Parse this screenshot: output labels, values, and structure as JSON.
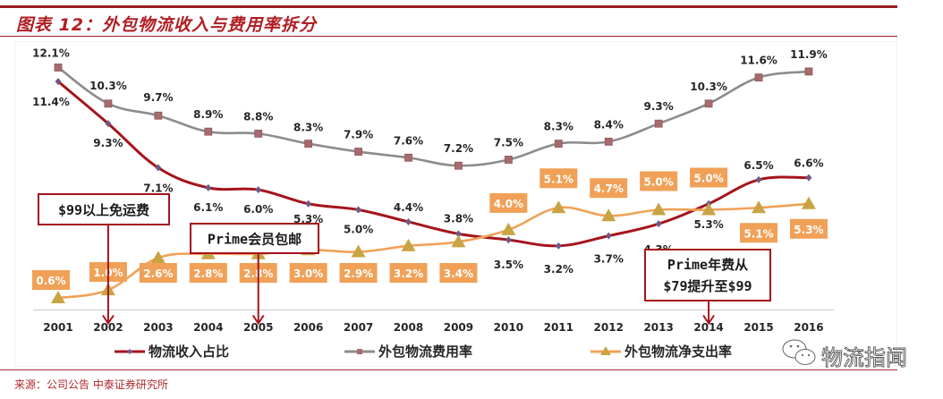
{
  "header": {
    "title": "图表 12：外包物流收入与费用率拆分"
  },
  "chart_data": {
    "type": "line",
    "title": "外包物流收入与费用率拆分",
    "x": [
      "2001",
      "2002",
      "2003",
      "2004",
      "2005",
      "2006",
      "2007",
      "2008",
      "2009",
      "2010",
      "2011",
      "2012",
      "2013",
      "2014",
      "2015",
      "2016"
    ],
    "xlabel": "",
    "ylabel": "",
    "ylim": [
      0,
      13
    ],
    "grid": false,
    "legend_position": "bottom",
    "series": [
      {
        "name": "物流收入占比",
        "color": "#a5141c",
        "marker": "diamond",
        "values": [
          11.4,
          9.3,
          7.1,
          6.1,
          6.0,
          5.3,
          5.0,
          4.4,
          3.8,
          3.5,
          3.2,
          3.7,
          4.3,
          5.3,
          6.5,
          6.6
        ],
        "labels": [
          "11.4%",
          "9.3%",
          "7.1%",
          "6.1%",
          "6.0%",
          "5.3%",
          "5.0%",
          "4.4%",
          "3.8%",
          "3.5%",
          "3.2%",
          "3.7%",
          "4.3%",
          "5.3%",
          "6.5%",
          "6.6%"
        ]
      },
      {
        "name": "外包物流费用率",
        "color": "#8c8c8c",
        "marker": "square",
        "values": [
          12.1,
          10.3,
          9.7,
          8.9,
          8.8,
          8.3,
          7.9,
          7.6,
          7.2,
          7.5,
          8.3,
          8.4,
          9.3,
          10.3,
          11.6,
          11.9
        ],
        "labels": [
          "12.1%",
          "10.3%",
          "9.7%",
          "8.9%",
          "8.8%",
          "8.3%",
          "7.9%",
          "7.6%",
          "7.2%",
          "7.5%",
          "8.3%",
          "8.4%",
          "9.3%",
          "10.3%",
          "11.6%",
          "11.9%"
        ]
      },
      {
        "name": "外包物流净支出率",
        "color": "#f0a157",
        "marker": "triangle",
        "values": [
          0.6,
          1.0,
          2.6,
          2.8,
          2.8,
          3.0,
          2.9,
          3.2,
          3.4,
          4.0,
          5.1,
          4.7,
          5.0,
          5.0,
          5.1,
          5.3
        ],
        "labels": [
          "0.6%",
          "1.0%",
          "2.6%",
          "2.8%",
          "2.8%",
          "3.0%",
          "2.9%",
          "3.2%",
          "3.4%",
          "4.0%",
          "5.1%",
          "4.7%",
          "5.0%",
          "5.0%",
          "5.1%",
          "5.3%"
        ]
      }
    ],
    "annotations": [
      {
        "text_lines": [
          "$99以上免运费"
        ],
        "year": "2002"
      },
      {
        "text_lines": [
          "Prime会员包邮"
        ],
        "year": "2005"
      },
      {
        "text_lines": [
          "Prime年费从",
          "$79提升至$99"
        ],
        "year": "2014"
      }
    ]
  },
  "footer": {
    "source": "来源：公司公告 中泰证券研究所",
    "watermark": "物流指闻"
  }
}
